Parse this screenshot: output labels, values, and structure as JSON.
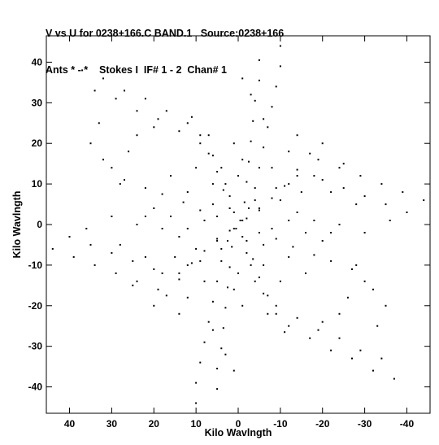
{
  "chart_data": {
    "type": "scatter",
    "title_line1": "V vs U for 0238+166.C BAND.1   Source:0238+166",
    "title_line2": "Ants * - *    Stokes I  IF# 1 - 2  Chan# 1",
    "xlabel": "Kilo Wavlngth",
    "ylabel": "Kilo Wavlngth",
    "xlim": [
      45.5,
      -45.5
    ],
    "ylim": [
      -46.5,
      46.5
    ],
    "x_ticks": [
      40,
      30,
      20,
      10,
      0,
      -10,
      -20,
      -30,
      -40
    ],
    "y_ticks": [
      40,
      30,
      20,
      10,
      0,
      -10,
      -20,
      -30,
      -40
    ],
    "x_tick_labels": [
      "40",
      "30",
      "20",
      "10",
      "0",
      "-10",
      "-20",
      "-30",
      "-40"
    ],
    "y_tick_labels": [
      "40",
      "30",
      "20",
      "10",
      "0",
      "-10",
      "-20",
      "-30",
      "-40"
    ],
    "grid": false,
    "legend": "none",
    "marker_color": "#000000",
    "series": [
      {
        "values": [
          [
            -10,
            44
          ],
          [
            -5,
            40.5
          ],
          [
            -10,
            39
          ],
          [
            -5,
            35.5
          ],
          [
            -9,
            34
          ],
          [
            -4,
            30.5
          ],
          [
            -8,
            29
          ],
          [
            -3.5,
            25.5
          ],
          [
            -7,
            24
          ],
          [
            -3,
            20.5
          ],
          [
            -6,
            19
          ],
          [
            -2.5,
            15.5
          ],
          [
            -5,
            14
          ],
          [
            -2,
            10.5
          ],
          [
            -4,
            9
          ],
          [
            -1.5,
            5.5
          ],
          [
            -2.5,
            4
          ],
          [
            -0.5,
            1
          ],
          [
            10,
            -44
          ],
          [
            5,
            -40.5
          ],
          [
            10,
            -39
          ],
          [
            5,
            -35.5
          ],
          [
            9,
            -34
          ],
          [
            4,
            -30.5
          ],
          [
            8,
            -29
          ],
          [
            3.5,
            -25.5
          ],
          [
            7,
            -24
          ],
          [
            3,
            -20.5
          ],
          [
            6,
            -19
          ],
          [
            2.5,
            -15.5
          ],
          [
            5,
            -14
          ],
          [
            2,
            -10.5
          ],
          [
            4,
            -9
          ],
          [
            1.5,
            -5.5
          ],
          [
            2.5,
            -4
          ],
          [
            0.5,
            -1
          ],
          [
            -44,
            6
          ],
          [
            -40,
            3
          ],
          [
            -39,
            8
          ],
          [
            -35,
            5
          ],
          [
            -34,
            10
          ],
          [
            -30,
            7
          ],
          [
            -29,
            12
          ],
          [
            -25,
            9
          ],
          [
            -24,
            14
          ],
          [
            -20,
            11
          ],
          [
            -19,
            16
          ],
          [
            -15,
            8
          ],
          [
            -14,
            12
          ],
          [
            -10,
            6
          ],
          [
            -9,
            9
          ],
          [
            -5,
            4
          ],
          [
            -4,
            6
          ],
          [
            -1,
            1
          ],
          [
            44,
            -6
          ],
          [
            40,
            -3
          ],
          [
            39,
            -8
          ],
          [
            35,
            -5
          ],
          [
            34,
            -10
          ],
          [
            30,
            -7
          ],
          [
            29,
            -12
          ],
          [
            25,
            -9
          ],
          [
            24,
            -14
          ],
          [
            20,
            -11
          ],
          [
            19,
            -16
          ],
          [
            15,
            -8
          ],
          [
            14,
            -12
          ],
          [
            10,
            -6
          ],
          [
            9,
            -9
          ],
          [
            5,
            -4
          ],
          [
            4,
            -6
          ],
          [
            1,
            -1
          ],
          [
            37,
            38
          ],
          [
            34,
            33
          ],
          [
            32,
            36
          ],
          [
            29,
            31
          ],
          [
            27,
            33
          ],
          [
            24,
            28
          ],
          [
            22,
            31
          ],
          [
            19,
            26
          ],
          [
            17,
            28
          ],
          [
            14,
            23
          ],
          [
            12,
            25
          ],
          [
            9,
            20
          ],
          [
            7,
            22
          ],
          [
            6,
            17
          ],
          [
            4,
            14
          ],
          [
            3,
            10
          ],
          [
            2,
            7
          ],
          [
            1,
            3
          ],
          [
            -37,
            -38
          ],
          [
            -34,
            -33
          ],
          [
            -32,
            -36
          ],
          [
            -29,
            -31
          ],
          [
            -27,
            -33
          ],
          [
            -24,
            -28
          ],
          [
            -22,
            -31
          ],
          [
            -19,
            -26
          ],
          [
            -17,
            -28
          ],
          [
            -14,
            -23
          ],
          [
            -12,
            -25
          ],
          [
            -9,
            -20
          ],
          [
            -7,
            -22
          ],
          [
            -6,
            -17
          ],
          [
            -4,
            -14
          ],
          [
            -3,
            -10
          ],
          [
            -2,
            -7
          ],
          [
            -1,
            -3
          ],
          [
            -17,
            17.5
          ],
          [
            -14,
            13.5
          ],
          [
            -11,
            9.5
          ],
          [
            -8,
            6.5
          ],
          [
            -5,
            3.5
          ],
          [
            -2,
            1.5
          ],
          [
            17,
            -17.5
          ],
          [
            14,
            -13.5
          ],
          [
            11,
            -9.5
          ],
          [
            8,
            -6.5
          ],
          [
            5,
            -3.5
          ],
          [
            2,
            -1.5
          ],
          [
            -27,
            -11
          ],
          [
            -22,
            -9
          ],
          [
            -18,
            -7.5
          ],
          [
            -13,
            -5.5
          ],
          [
            -9,
            -3.5
          ],
          [
            -5,
            -2
          ],
          [
            27,
            11
          ],
          [
            22,
            9
          ],
          [
            18,
            7.5
          ],
          [
            13,
            5.5
          ],
          [
            9,
            3.5
          ],
          [
            5,
            2
          ],
          [
            11,
            26.5
          ],
          [
            9,
            22
          ],
          [
            7,
            17.5
          ],
          [
            5,
            13
          ],
          [
            3.5,
            8.5
          ],
          [
            2,
            4
          ],
          [
            -11,
            -26.5
          ],
          [
            -9,
            -22
          ],
          [
            -7,
            -17.5
          ],
          [
            -5,
            -13
          ],
          [
            -3.5,
            -8.5
          ],
          [
            -2,
            -4
          ],
          [
            -20,
            20
          ],
          [
            -25,
            15
          ],
          [
            -18,
            12
          ],
          [
            -22,
            8
          ],
          [
            -28,
            5
          ],
          [
            -12,
            18
          ],
          [
            -14,
            22
          ],
          [
            -6,
            26
          ],
          [
            -3,
            32
          ],
          [
            -1,
            36
          ],
          [
            20,
            -20
          ],
          [
            25,
            -15
          ],
          [
            18,
            -12
          ],
          [
            22,
            -8
          ],
          [
            28,
            -5
          ],
          [
            12,
            -18
          ],
          [
            14,
            -22
          ],
          [
            6,
            -26
          ],
          [
            3,
            -32
          ],
          [
            1,
            -36
          ],
          [
            26,
            18
          ],
          [
            30,
            14
          ],
          [
            35,
            20
          ],
          [
            24,
            22
          ],
          [
            33,
            25
          ],
          [
            20,
            24
          ],
          [
            -26,
            -18
          ],
          [
            -30,
            -14
          ],
          [
            -35,
            -20
          ],
          [
            -24,
            -22
          ],
          [
            -33,
            -25
          ],
          [
            -20,
            -24
          ],
          [
            -12,
            1
          ],
          [
            -16,
            -2
          ],
          [
            -20,
            -4
          ],
          [
            -24,
            0
          ],
          [
            -30,
            -2
          ],
          [
            -36,
            1
          ],
          [
            -8,
            -1
          ],
          [
            12,
            -1
          ],
          [
            16,
            2
          ],
          [
            20,
            4
          ],
          [
            24,
            0
          ],
          [
            30,
            2
          ],
          [
            36,
            -1
          ],
          [
            8,
            1
          ],
          [
            -6,
            -5
          ],
          [
            -12,
            -8
          ],
          [
            -16,
            -12
          ],
          [
            6,
            5
          ],
          [
            12,
            8
          ],
          [
            16,
            12
          ],
          [
            -14,
            3
          ],
          [
            -18,
            1
          ],
          [
            14,
            -3
          ],
          [
            18,
            -1
          ],
          [
            0,
            12
          ],
          [
            -1,
            16
          ],
          [
            1,
            20
          ],
          [
            0,
            -12
          ],
          [
            1,
            -16
          ],
          [
            -1,
            -20
          ],
          [
            6,
            10
          ],
          [
            10,
            14
          ],
          [
            -6,
            -10
          ],
          [
            -10,
            -14
          ],
          [
            -8,
            14
          ],
          [
            -12,
            10
          ],
          [
            8,
            -14
          ],
          [
            12,
            -10
          ],
          [
            22,
            2
          ],
          [
            -22,
            -2
          ],
          [
            28,
            10
          ],
          [
            -28,
            -10
          ],
          [
            32,
            16
          ],
          [
            -32,
            -16
          ]
        ]
      }
    ]
  }
}
